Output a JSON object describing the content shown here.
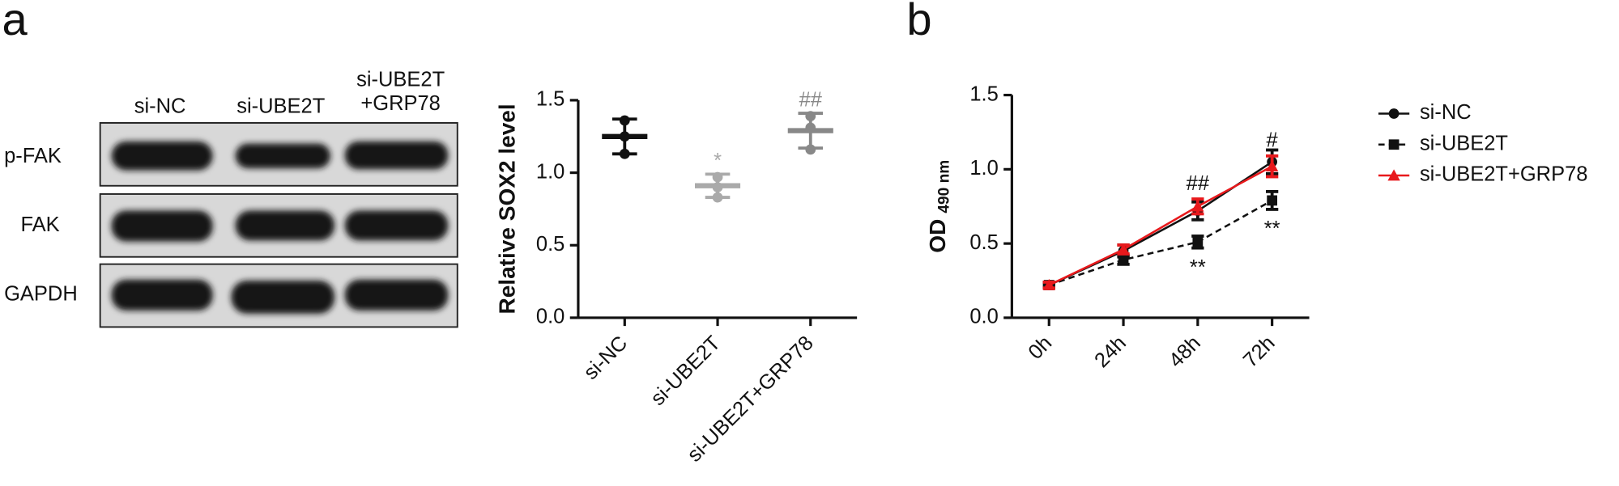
{
  "panel_labels": [
    "a",
    "b"
  ],
  "blot": {
    "lanes": [
      [
        "si-NC"
      ],
      [
        "si-UBE2T"
      ],
      [
        "si-UBE2T",
        "+GRP78"
      ]
    ],
    "rows": [
      "p-FAK",
      "FAK",
      "GAPDH"
    ]
  },
  "chart_data": [
    {
      "type": "dot",
      "ylabel": "Relative SOX2 level",
      "categories": [
        "si-NC",
        "si-UBE2T",
        "si-UBE2T+GRP78"
      ],
      "colors": [
        "#111111",
        "#aaaaaa",
        "#888888"
      ],
      "values": [
        1.25,
        0.91,
        1.29
      ],
      "errors": [
        0.12,
        0.08,
        0.12
      ],
      "points": [
        [
          1.36,
          1.25,
          1.13
        ],
        [
          0.97,
          0.9,
          0.83
        ],
        [
          1.39,
          1.31,
          1.16
        ]
      ],
      "annotations": [
        {
          "text": "*",
          "category": "si-UBE2T"
        },
        {
          "text": "##",
          "category": "si-UBE2T+GRP78"
        }
      ],
      "ylim": [
        0,
        1.5
      ],
      "yticks": [
        {
          "value": 0,
          "label": "0.0"
        },
        {
          "value": 0.5,
          "label": "0.5"
        },
        {
          "value": 1,
          "label": "1.0"
        },
        {
          "value": 1.5,
          "label": "1.5"
        }
      ]
    },
    {
      "type": "line",
      "ylabel": "OD",
      "ylabel_sub": "490 nm",
      "categories": [
        "0h",
        "24h",
        "48h",
        "72h"
      ],
      "series": [
        {
          "name": "si-NC",
          "color": "#111111",
          "marker": "circle",
          "dash": false,
          "values": [
            0.22,
            0.45,
            0.72,
            1.05
          ],
          "errors": [
            0.02,
            0.04,
            0.06,
            0.08
          ]
        },
        {
          "name": "si-UBE2T",
          "color": "#111111",
          "marker": "square",
          "dash": true,
          "values": [
            0.22,
            0.39,
            0.51,
            0.79
          ],
          "errors": [
            0.01,
            0.03,
            0.04,
            0.06
          ]
        },
        {
          "name": "si-UBE2T+GRP78",
          "color": "#e8191c",
          "marker": "triangle",
          "dash": false,
          "values": [
            0.22,
            0.46,
            0.75,
            1.02
          ],
          "errors": [
            0.02,
            0.03,
            0.05,
            0.07
          ]
        }
      ],
      "annotations": [
        {
          "text": "##",
          "series": "si-UBE2T+GRP78",
          "category": "48h",
          "position": "above"
        },
        {
          "text": "#",
          "series": "si-UBE2T+GRP78",
          "category": "72h",
          "position": "above"
        },
        {
          "text": "**",
          "series": "si-UBE2T",
          "category": "48h",
          "position": "below"
        },
        {
          "text": "**",
          "series": "si-UBE2T",
          "category": "72h",
          "position": "below"
        }
      ],
      "ylim": [
        0,
        1.5
      ],
      "yticks": [
        {
          "value": 0,
          "label": "0.0"
        },
        {
          "value": 0.5,
          "label": "0.5"
        },
        {
          "value": 1,
          "label": "1.0"
        },
        {
          "value": 1.5,
          "label": "1.5"
        }
      ]
    }
  ]
}
